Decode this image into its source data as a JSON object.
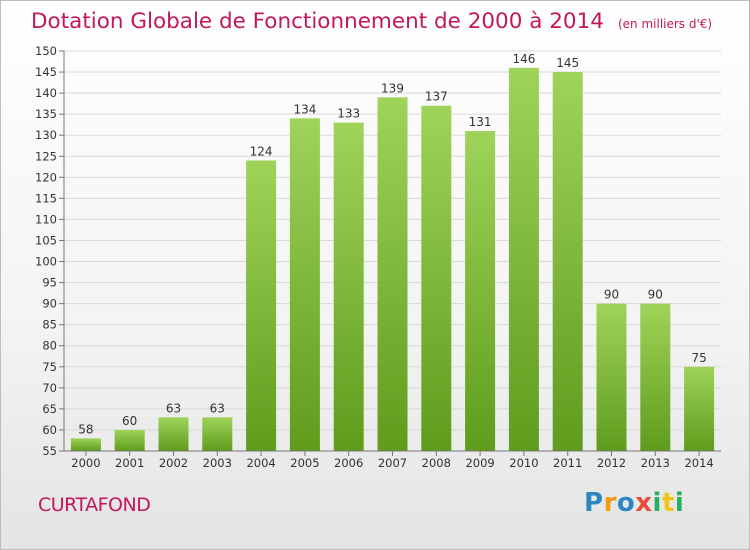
{
  "title": "Dotation Globale de Fonctionnement de 2000 à 2014",
  "subtitle": "(en milliers d'€)",
  "town": "CURTAFOND",
  "logo": "Proxiti",
  "colors": {
    "title": "#c2185b",
    "bar_top": "#9fd35a",
    "bar_bottom": "#5f9c1c"
  },
  "chart_data": {
    "type": "bar",
    "title": "Dotation Globale de Fonctionnement de 2000 à 2014",
    "subtitle": "(en milliers d'€)",
    "categories": [
      "2000",
      "2001",
      "2002",
      "2003",
      "2004",
      "2005",
      "2006",
      "2007",
      "2008",
      "2009",
      "2010",
      "2011",
      "2012",
      "2013",
      "2014"
    ],
    "values": [
      58,
      60,
      63,
      63,
      124,
      134,
      133,
      139,
      137,
      131,
      146,
      145,
      90,
      90,
      75
    ],
    "ylim": [
      55,
      150
    ],
    "yticks": [
      55,
      60,
      65,
      70,
      75,
      80,
      85,
      90,
      95,
      100,
      105,
      110,
      115,
      120,
      125,
      130,
      135,
      140,
      145,
      150
    ],
    "grid": true
  }
}
